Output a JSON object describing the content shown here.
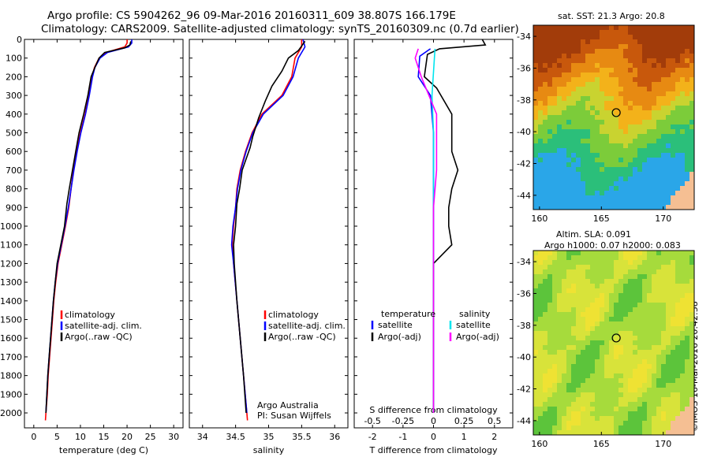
{
  "header": {
    "line1": "Argo profile: CS 5904262_96 09-Mar-2016 20160311_609 38.807S 166.179E",
    "line2": "Climatology: CARS2009. Satellite-adjusted climatology: synTS_20160309.nc (0.7d earlier)"
  },
  "side": {
    "sst_title": "sat. SST: 21.3 Argo: 20.8",
    "sla_title1": "Altim. SLA: 0.091",
    "sla_title2": "Argo h1000: 0.07 h2000: 0.083",
    "stamp": "©IMOS 16-Mar-2016 20:42:38"
  },
  "colors": {
    "climatology": "#ff0000",
    "satellite": "#0000ff",
    "argo": "#000000",
    "sat_salinity": "#00e5ee",
    "argo_salinity": "#ff00ff",
    "land": "#f5bf93"
  },
  "chart_data": [
    {
      "type": "line",
      "id": "temperature",
      "xlabel": "temperature (deg C)",
      "ylabel": "",
      "xlim": [
        -2,
        32
      ],
      "ylim": [
        2080,
        0
      ],
      "xticks": [
        0,
        5,
        10,
        15,
        20,
        25,
        30
      ],
      "yticks": [
        0,
        100,
        200,
        300,
        400,
        500,
        600,
        700,
        800,
        900,
        1000,
        1100,
        1200,
        1300,
        1400,
        1500,
        1600,
        1700,
        1800,
        1900,
        2000
      ],
      "legend": [
        "climatology",
        "satellite-adj. clim.",
        "Argo(..raw -QC)"
      ],
      "series": [
        {
          "name": "climatology",
          "color": "#ff0000",
          "points": [
            [
              20.0,
              0
            ],
            [
              20.0,
              20
            ],
            [
              19.5,
              40
            ],
            [
              15.5,
              70
            ],
            [
              14.0,
              100
            ],
            [
              13.0,
              150
            ],
            [
              12.5,
              200
            ],
            [
              11.8,
              300
            ],
            [
              11.0,
              400
            ],
            [
              10.0,
              500
            ],
            [
              9.2,
              600
            ],
            [
              8.5,
              700
            ],
            [
              8.0,
              800
            ],
            [
              7.5,
              900
            ],
            [
              6.8,
              1000
            ],
            [
              6.0,
              1100
            ],
            [
              5.2,
              1200
            ],
            [
              4.7,
              1300
            ],
            [
              4.3,
              1400
            ],
            [
              4.0,
              1500
            ],
            [
              3.7,
              1600
            ],
            [
              3.4,
              1700
            ],
            [
              3.1,
              1800
            ],
            [
              2.9,
              1900
            ],
            [
              2.6,
              2000
            ],
            [
              2.5,
              2040
            ]
          ]
        },
        {
          "name": "satellite-adj. clim.",
          "color": "#0000ff",
          "points": [
            [
              21.0,
              0
            ],
            [
              21.0,
              20
            ],
            [
              20.3,
              40
            ],
            [
              15.8,
              70
            ],
            [
              14.2,
              100
            ],
            [
              13.1,
              150
            ],
            [
              12.6,
              200
            ],
            [
              11.9,
              300
            ],
            [
              11.1,
              400
            ],
            [
              10.1,
              500
            ],
            [
              9.3,
              600
            ],
            [
              8.6,
              700
            ],
            [
              8.0,
              800
            ],
            [
              7.4,
              900
            ],
            [
              6.7,
              1000
            ],
            [
              5.9,
              1100
            ],
            [
              5.1,
              1200
            ],
            [
              4.6,
              1300
            ],
            [
              4.2,
              1400
            ],
            [
              3.9,
              1500
            ],
            [
              3.6,
              1600
            ],
            [
              3.3,
              1700
            ],
            [
              3.0,
              1800
            ],
            [
              2.8,
              1900
            ],
            [
              2.6,
              2000
            ]
          ]
        },
        {
          "name": "Argo(..raw -QC)",
          "color": "#000000",
          "points": [
            [
              20.8,
              10
            ],
            [
              20.6,
              30
            ],
            [
              19.5,
              45
            ],
            [
              15.2,
              70
            ],
            [
              14.0,
              100
            ],
            [
              13.1,
              150
            ],
            [
              12.3,
              200
            ],
            [
              11.6,
              300
            ],
            [
              10.7,
              400
            ],
            [
              9.7,
              500
            ],
            [
              9.0,
              600
            ],
            [
              8.3,
              700
            ],
            [
              7.6,
              800
            ],
            [
              7.1,
              880
            ],
            [
              6.6,
              1000
            ],
            [
              5.8,
              1100
            ],
            [
              5.0,
              1200
            ],
            [
              4.6,
              1300
            ],
            [
              4.2,
              1400
            ],
            [
              3.9,
              1500
            ],
            [
              3.6,
              1600
            ],
            [
              3.3,
              1700
            ],
            [
              3.0,
              1800
            ],
            [
              2.8,
              1900
            ],
            [
              2.6,
              2000
            ]
          ]
        }
      ]
    },
    {
      "type": "line",
      "id": "salinity",
      "xlabel": "salinity",
      "xlim": [
        33.8,
        36.2
      ],
      "ylim": [
        2080,
        0
      ],
      "xticks": [
        34,
        34.5,
        35,
        35.5,
        36
      ],
      "legend": [
        "climatology",
        "satellite-adj. clim.",
        "Argo(..raw -QC)"
      ],
      "annotation": [
        "Argo Australia",
        "PI: Susan Wijffels"
      ],
      "series": [
        {
          "name": "climatology",
          "color": "#ff0000",
          "points": [
            [
              35.5,
              0
            ],
            [
              35.5,
              40
            ],
            [
              35.4,
              100
            ],
            [
              35.35,
              200
            ],
            [
              35.2,
              300
            ],
            [
              34.9,
              400
            ],
            [
              34.75,
              500
            ],
            [
              34.65,
              600
            ],
            [
              34.57,
              700
            ],
            [
              34.52,
              800
            ],
            [
              34.5,
              900
            ],
            [
              34.47,
              1000
            ],
            [
              34.45,
              1100
            ],
            [
              34.47,
              1200
            ],
            [
              34.52,
              1400
            ],
            [
              34.57,
              1600
            ],
            [
              34.62,
              1800
            ],
            [
              34.67,
              2000
            ],
            [
              34.68,
              2040
            ]
          ]
        },
        {
          "name": "satellite-adj. clim.",
          "color": "#0000ff",
          "points": [
            [
              35.52,
              0
            ],
            [
              35.55,
              40
            ],
            [
              35.45,
              100
            ],
            [
              35.37,
              200
            ],
            [
              35.22,
              300
            ],
            [
              34.92,
              400
            ],
            [
              34.76,
              500
            ],
            [
              34.66,
              600
            ],
            [
              34.58,
              700
            ],
            [
              34.53,
              800
            ],
            [
              34.5,
              900
            ],
            [
              34.46,
              1000
            ],
            [
              34.44,
              1100
            ],
            [
              34.47,
              1200
            ],
            [
              34.52,
              1400
            ],
            [
              34.57,
              1600
            ],
            [
              34.62,
              1800
            ],
            [
              34.67,
              2000
            ]
          ]
        },
        {
          "name": "Argo(..raw -QC)",
          "color": "#000000",
          "points": [
            [
              35.55,
              10
            ],
            [
              35.45,
              60
            ],
            [
              35.3,
              100
            ],
            [
              35.2,
              170
            ],
            [
              35.05,
              250
            ],
            [
              34.95,
              330
            ],
            [
              34.85,
              420
            ],
            [
              34.76,
              520
            ],
            [
              34.72,
              580
            ],
            [
              34.6,
              700
            ],
            [
              34.56,
              800
            ],
            [
              34.52,
              880
            ],
            [
              34.5,
              1000
            ],
            [
              34.47,
              1100
            ],
            [
              34.48,
              1200
            ],
            [
              34.52,
              1400
            ],
            [
              34.57,
              1600
            ],
            [
              34.62,
              1800
            ],
            [
              34.66,
              2000
            ]
          ]
        }
      ]
    },
    {
      "type": "line",
      "id": "difference",
      "xlabel": "T difference from climatology",
      "xlabel2": "S difference from climatology",
      "xlim": [
        -2.6,
        2.6
      ],
      "ylim": [
        2080,
        0
      ],
      "xticks": [
        -2,
        -1,
        0,
        1,
        2
      ],
      "xticks_s": [
        -0.5,
        -0.25,
        0,
        0.25,
        0.5
      ],
      "legend_headers": [
        "temperature",
        "salinity"
      ],
      "legend": [
        "satellite",
        "Argo(-adj)",
        "satellite",
        "Argo(-adj)"
      ],
      "series": [
        {
          "name": "satellite",
          "color": "#0000ff",
          "points": [
            [
              -0.1,
              50
            ],
            [
              -0.45,
              90
            ],
            [
              -0.5,
              200
            ],
            [
              -0.1,
              300
            ],
            [
              0.0,
              500
            ],
            [
              0.0,
              800
            ],
            [
              0.0,
              1200
            ],
            [
              0.0,
              2000
            ]
          ]
        },
        {
          "name": "Argo(-adj)",
          "color": "#000000",
          "points": [
            [
              1.6,
              0
            ],
            [
              1.7,
              30
            ],
            [
              0.2,
              50
            ],
            [
              -0.2,
              80
            ],
            [
              -0.3,
              200
            ],
            [
              0.1,
              260
            ],
            [
              0.6,
              400
            ],
            [
              0.6,
              600
            ],
            [
              0.8,
              700
            ],
            [
              0.6,
              800
            ],
            [
              0.5,
              900
            ],
            [
              0.5,
              1000
            ],
            [
              0.6,
              1100
            ],
            [
              0.0,
              1200
            ],
            [
              0.0,
              1500
            ],
            [
              0.0,
              2000
            ]
          ]
        },
        {
          "name": "satellite",
          "color": "#00e5ee",
          "points": [
            [
              0.05,
              50
            ],
            [
              -0.05,
              300
            ],
            [
              0.0,
              500
            ],
            [
              0.0,
              900
            ],
            [
              0.0,
              1200
            ],
            [
              0.0,
              2000
            ]
          ]
        },
        {
          "name": "Argo(-adj)",
          "color": "#ff00ff",
          "points": [
            [
              -0.5,
              50
            ],
            [
              -0.6,
              100
            ],
            [
              -0.4,
              200
            ],
            [
              0.1,
              400
            ],
            [
              0.1,
              700
            ],
            [
              0.0,
              900
            ],
            [
              0.0,
              1200
            ],
            [
              0.0,
              2000
            ]
          ]
        }
      ]
    },
    {
      "type": "heatmap",
      "id": "sst-map",
      "title": "sat. SST: 21.3 Argo: 20.8",
      "xticks": [
        160,
        165,
        170
      ],
      "yticks": [
        -34,
        -36,
        -38,
        -40,
        -42,
        -44
      ],
      "xlim": [
        159.5,
        172.5
      ],
      "ylim": [
        -44.9,
        -33.3
      ],
      "marker": [
        166.2,
        -38.8
      ]
    },
    {
      "type": "heatmap",
      "id": "sla-map",
      "title": "Altim. SLA: 0.091",
      "subtitle": "Argo h1000: 0.07 h2000: 0.083",
      "xticks": [
        160,
        165,
        170
      ],
      "yticks": [
        -34,
        -36,
        -38,
        -40,
        -42,
        -44
      ],
      "xlim": [
        159.5,
        172.5
      ],
      "ylim": [
        -44.9,
        -33.3
      ],
      "marker": [
        166.2,
        -38.8
      ]
    }
  ]
}
